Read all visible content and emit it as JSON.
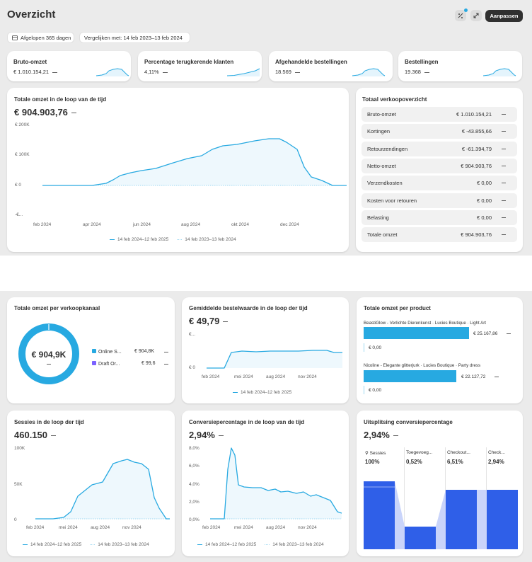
{
  "header": {
    "title": "Overzicht",
    "customize_label": "Aanpassen"
  },
  "filters": {
    "date_range": "Afgelopen 365 dagen",
    "compare": "Vergelijken met: 14 feb 2023–13 feb 2024"
  },
  "kpis": [
    {
      "title": "Bruto-omzet",
      "value": "€ 1.010.154,21"
    },
    {
      "title": "Percentage terugkerende klanten",
      "value": "4,11%"
    },
    {
      "title": "Afgehandelde bestellingen",
      "value": "18.569"
    },
    {
      "title": "Bestellingen",
      "value": "19.368"
    }
  ],
  "revenue_chart": {
    "title": "Totale omzet in de loop van de tijd",
    "value": "€ 904.903,76",
    "y_ticks": [
      "€ 200K",
      "€ 100K",
      "€ 0",
      "-€..."
    ],
    "x_ticks": [
      "feb 2024",
      "apr 2024",
      "jun 2024",
      "aug 2024",
      "okt 2024",
      "dec 2024"
    ],
    "legend_current": "14 feb 2024–12 feb 2025",
    "legend_previous": "14 feb 2023–13 feb 2024"
  },
  "sales_overview": {
    "title": "Totaal verkoopoverzicht",
    "rows": [
      {
        "label": "Bruto-omzet",
        "value": "€ 1.010.154,21"
      },
      {
        "label": "Kortingen",
        "value": "€ -43.855,66"
      },
      {
        "label": "Retourzendingen",
        "value": "€ -61.394,79"
      },
      {
        "label": "Netto-omzet",
        "value": "€ 904.903,76"
      },
      {
        "label": "Verzendkosten",
        "value": "€ 0,00"
      },
      {
        "label": "Kosten voor retouren",
        "value": "€ 0,00"
      },
      {
        "label": "Belasting",
        "value": "€ 0,00"
      },
      {
        "label": "Totale omzet",
        "value": "€ 904.903,76"
      }
    ]
  },
  "channel": {
    "title": "Totale omzet per verkoopkanaal",
    "center_value": "€ 904,9K",
    "items": [
      {
        "label": "Online S...",
        "value": "€ 904,8K",
        "color": "#27a9e1"
      },
      {
        "label": "Draft Or...",
        "value": "€ 99,6",
        "color": "#7b61ff"
      }
    ]
  },
  "aov": {
    "title": "Gemiddelde bestelwaarde in de loop der tijd",
    "value": "€ 49,79",
    "y_ticks": [
      "€...",
      "€ 0"
    ],
    "x_ticks": [
      "feb 2024",
      "mei 2024",
      "aug 2024",
      "nov 2024"
    ],
    "legend_current": "14 feb 2024–12 feb 2025"
  },
  "products": {
    "title": "Totale omzet per product",
    "items": [
      {
        "name": "BeastiGlow - Verlichte Dierenkunst · Lucies Boutique · Light Art",
        "value": "€ 25.167,86",
        "prev": "€ 0,00"
      },
      {
        "name": "Nicoline - Elegante glitterjurk · Lucies Boutique · Party dress",
        "value": "€ 22.127,72",
        "prev": "€ 0,00"
      }
    ]
  },
  "sessions": {
    "title": "Sessies in de loop der tijd",
    "value": "460.150",
    "y_ticks": [
      "100K",
      "50K",
      "0"
    ],
    "x_ticks": [
      "feb 2024",
      "mei 2024",
      "aug 2024",
      "nov 2024"
    ],
    "legend_current": "14 feb 2024–12 feb 2025",
    "legend_previous": "14 feb 2023–13 feb 2024"
  },
  "conversion": {
    "title": "Conversiepercentage in de loop van de tijd",
    "value": "2,94%",
    "y_ticks": [
      "8,0%",
      "6,0%",
      "4,0%",
      "2,0%",
      "0,0%"
    ],
    "x_ticks": [
      "feb 2024",
      "mei 2024",
      "aug 2024",
      "nov 2024"
    ],
    "legend_current": "14 feb 2024–12 feb 2025",
    "legend_previous": "14 feb 2023–13 feb 2024"
  },
  "funnel": {
    "title": "Uitsplitsing conversiepercentage",
    "value": "2,94%",
    "steps": [
      {
        "label": "Sessies",
        "value": "100%",
        "fraction": 1.0
      },
      {
        "label": "Toegevoeg...",
        "value": "0,52%",
        "fraction": 0.33
      },
      {
        "label": "Checkout...",
        "value": "6,51%",
        "fraction": 0.87
      },
      {
        "label": "Check...",
        "value": "2,94%",
        "fraction": 0.87
      }
    ]
  },
  "colors": {
    "accent": "#27a9e1",
    "funnel_blue": "#2f5fe8",
    "secondary": "#7b61ff"
  }
}
